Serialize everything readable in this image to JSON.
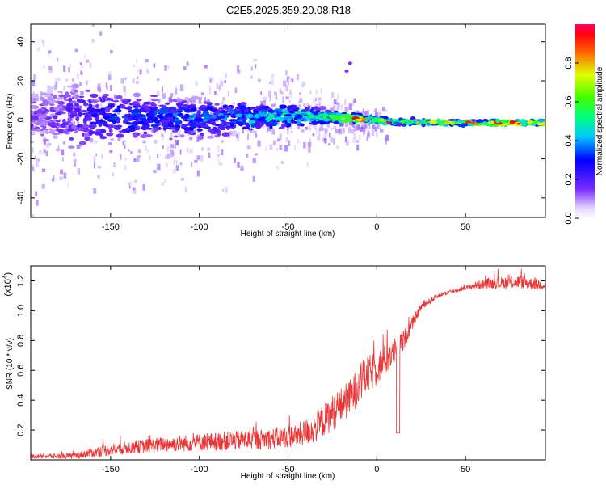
{
  "title": "C2E5.2025.359.20.08.R18",
  "chart_data": [
    {
      "type": "heatmap",
      "xlabel": "Height of straight line (km)",
      "ylabel": "Frequency (Hz)",
      "xlim": [
        -195,
        95
      ],
      "ylim": [
        -50,
        49
      ],
      "xticks": [
        -150,
        -100,
        -50,
        0,
        50
      ],
      "yticks": [
        -40,
        -20,
        0,
        20,
        40
      ],
      "ridge": [
        {
          "x": -190,
          "y": 1.5,
          "spread": 12,
          "amp": 0.15
        },
        {
          "x": -170,
          "y": 2.0,
          "spread": 14,
          "amp": 0.2
        },
        {
          "x": -150,
          "y": 2.0,
          "spread": 9,
          "amp": 0.3
        },
        {
          "x": -120,
          "y": 1.5,
          "spread": 8,
          "amp": 0.35
        },
        {
          "x": -100,
          "y": 0.5,
          "spread": 7,
          "amp": 0.35
        },
        {
          "x": -80,
          "y": 1.0,
          "spread": 6,
          "amp": 0.4
        },
        {
          "x": -60,
          "y": 1.5,
          "spread": 5,
          "amp": 0.45
        },
        {
          "x": -40,
          "y": 2.0,
          "spread": 4,
          "amp": 0.5
        },
        {
          "x": -25,
          "y": 1.5,
          "spread": 2.5,
          "amp": 0.55
        },
        {
          "x": -10,
          "y": 0.5,
          "spread": 1.5,
          "amp": 0.85
        },
        {
          "x": 10,
          "y": -1.0,
          "spread": 1.2,
          "amp": 0.6
        },
        {
          "x": 40,
          "y": -1.5,
          "spread": 1.0,
          "amp": 0.7
        },
        {
          "x": 70,
          "y": -1.5,
          "spread": 1.0,
          "amp": 0.9
        },
        {
          "x": 95,
          "y": -1.5,
          "spread": 1.0,
          "amp": 0.8
        }
      ],
      "isolated_points": [
        {
          "x": -15,
          "y": 29,
          "amp": 0.15
        },
        {
          "x": -17,
          "y": 25,
          "amp": 0.15
        }
      ],
      "colorbar": {
        "label": "Normalized spectral amplitude",
        "range": [
          0.0,
          1.0
        ],
        "ticks": [
          "0.0",
          "0.2",
          "0.4",
          "0.6",
          "0.8"
        ]
      }
    },
    {
      "type": "line",
      "xlabel": "Height of straight line (km)",
      "ylabel": "SNR (10 * v/v)",
      "exponent_label": "(x10",
      "exponent_sup": "4",
      "xlim": [
        -195,
        95
      ],
      "ylim": [
        0.0,
        1.3
      ],
      "xticks": [
        -150,
        -100,
        -50,
        0,
        50
      ],
      "yticks": [
        "0.2",
        "0.4",
        "0.6",
        "0.8",
        "1.0",
        "1.2"
      ],
      "series": [
        {
          "name": "SNR",
          "color": "#ee3333",
          "envelope": {
            "x": [
              -195,
              -170,
              -155,
              -140,
              -120,
              -100,
              -80,
              -60,
              -45,
              -35,
              -25,
              -15,
              -8,
              0,
              10,
              15,
              20,
              25,
              35,
              50,
              60,
              80,
              95
            ],
            "base": [
              0.02,
              0.02,
              0.05,
              0.07,
              0.09,
              0.1,
              0.11,
              0.12,
              0.14,
              0.18,
              0.28,
              0.38,
              0.5,
              0.58,
              0.7,
              0.78,
              0.9,
              1.02,
              1.1,
              1.15,
              1.17,
              1.18,
              1.16
            ],
            "amp": [
              0.03,
              0.04,
              0.08,
              0.09,
              0.1,
              0.12,
              0.13,
              0.14,
              0.16,
              0.2,
              0.24,
              0.25,
              0.26,
              0.24,
              0.18,
              0.14,
              0.08,
              0.05,
              0.03,
              0.03,
              0.07,
              0.09,
              0.07
            ]
          }
        }
      ]
    }
  ]
}
